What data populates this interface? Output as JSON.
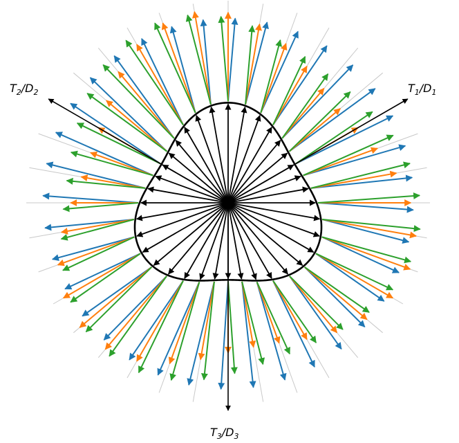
{
  "axes": {
    "t1": {
      "main": "T",
      "sub": "1",
      "slash": "/",
      "main2": "D",
      "sub2": "1"
    },
    "t2": {
      "main": "T",
      "sub": "2",
      "slash": "/",
      "main2": "D",
      "sub2": "2"
    },
    "t3": {
      "main": "T",
      "sub": "3",
      "slash": "/",
      "main2": "D",
      "sub2": "3"
    }
  },
  "colors": {
    "inner_arrows": "#000000",
    "series": [
      "#1f77b4",
      "#ff7f0e",
      "#2ca02c"
    ],
    "guide_lines": "#c8c8c8",
    "boundary": "#000000"
  },
  "directions": {
    "count": 36,
    "symmetry": "3-fold"
  }
}
